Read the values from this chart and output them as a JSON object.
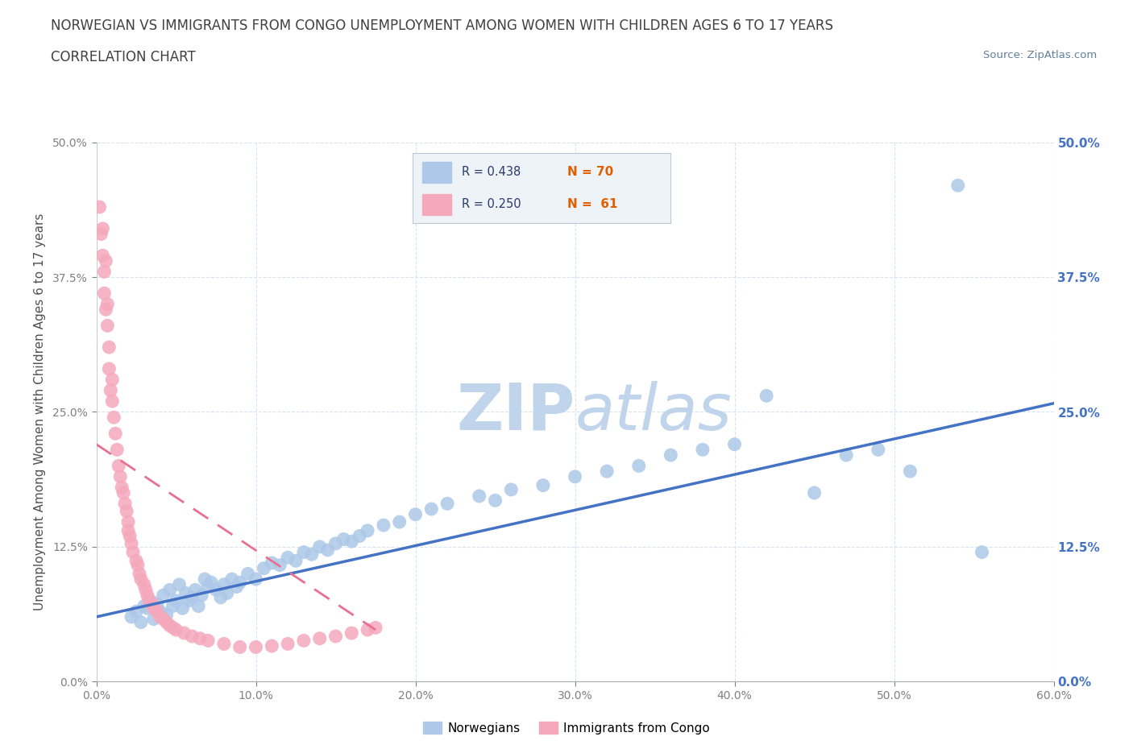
{
  "title_line1": "NORWEGIAN VS IMMIGRANTS FROM CONGO UNEMPLOYMENT AMONG WOMEN WITH CHILDREN AGES 6 TO 17 YEARS",
  "title_line2": "CORRELATION CHART",
  "source_text": "Source: ZipAtlas.com",
  "ylabel": "Unemployment Among Women with Children Ages 6 to 17 years",
  "xlim": [
    0,
    0.6
  ],
  "ylim": [
    0,
    0.5
  ],
  "xticks": [
    0.0,
    0.1,
    0.2,
    0.3,
    0.4,
    0.5,
    0.6
  ],
  "yticks": [
    0.0,
    0.125,
    0.25,
    0.375,
    0.5
  ],
  "xticklabels": [
    "0.0%",
    "10.0%",
    "20.0%",
    "30.0%",
    "40.0%",
    "50.0%",
    "60.0%"
  ],
  "yticklabels": [
    "0.0%",
    "12.5%",
    "25.0%",
    "37.5%",
    "50.0%"
  ],
  "norwegian_R": 0.438,
  "norwegian_N": 70,
  "congo_R": 0.25,
  "congo_N": 61,
  "norwegian_color": "#adc8e8",
  "congo_color": "#f5a8bc",
  "norwegian_line_color": "#4472c4",
  "congo_line_color": "#e87090",
  "watermark_color": "#d0dff0",
  "title_color": "#404040",
  "axis_label_color": "#505050",
  "tick_color": "#808080",
  "right_tick_color": "#4472c4",
  "grid_color": "#d8e4f0",
  "background_color": "#ffffff",
  "norwegian_x": [
    0.022,
    0.025,
    0.028,
    0.03,
    0.032,
    0.034,
    0.036,
    0.038,
    0.04,
    0.042,
    0.044,
    0.046,
    0.048,
    0.05,
    0.052,
    0.054,
    0.056,
    0.058,
    0.06,
    0.062,
    0.064,
    0.066,
    0.068,
    0.07,
    0.072,
    0.075,
    0.078,
    0.08,
    0.082,
    0.085,
    0.088,
    0.09,
    0.095,
    0.1,
    0.105,
    0.11,
    0.115,
    0.12,
    0.125,
    0.13,
    0.135,
    0.14,
    0.145,
    0.15,
    0.155,
    0.16,
    0.165,
    0.17,
    0.18,
    0.19,
    0.2,
    0.21,
    0.22,
    0.24,
    0.25,
    0.26,
    0.28,
    0.3,
    0.32,
    0.34,
    0.36,
    0.38,
    0.4,
    0.42,
    0.45,
    0.47,
    0.49,
    0.51,
    0.54,
    0.555
  ],
  "norwegian_y": [
    0.06,
    0.065,
    0.055,
    0.07,
    0.068,
    0.075,
    0.058,
    0.072,
    0.065,
    0.08,
    0.062,
    0.085,
    0.07,
    0.075,
    0.09,
    0.068,
    0.082,
    0.075,
    0.078,
    0.085,
    0.07,
    0.08,
    0.095,
    0.088,
    0.092,
    0.085,
    0.078,
    0.09,
    0.082,
    0.095,
    0.088,
    0.092,
    0.1,
    0.095,
    0.105,
    0.11,
    0.108,
    0.115,
    0.112,
    0.12,
    0.118,
    0.125,
    0.122,
    0.128,
    0.132,
    0.13,
    0.135,
    0.14,
    0.145,
    0.148,
    0.155,
    0.16,
    0.165,
    0.172,
    0.168,
    0.178,
    0.182,
    0.19,
    0.195,
    0.2,
    0.21,
    0.215,
    0.22,
    0.265,
    0.175,
    0.21,
    0.215,
    0.195,
    0.46,
    0.12
  ],
  "congo_x": [
    0.002,
    0.003,
    0.004,
    0.004,
    0.005,
    0.005,
    0.006,
    0.006,
    0.007,
    0.007,
    0.008,
    0.008,
    0.009,
    0.01,
    0.01,
    0.011,
    0.012,
    0.013,
    0.014,
    0.015,
    0.016,
    0.017,
    0.018,
    0.019,
    0.02,
    0.02,
    0.021,
    0.022,
    0.023,
    0.025,
    0.026,
    0.027,
    0.028,
    0.03,
    0.031,
    0.032,
    0.033,
    0.035,
    0.036,
    0.038,
    0.04,
    0.042,
    0.044,
    0.046,
    0.048,
    0.05,
    0.055,
    0.06,
    0.065,
    0.07,
    0.08,
    0.09,
    0.1,
    0.11,
    0.12,
    0.13,
    0.14,
    0.15,
    0.16,
    0.17,
    0.175
  ],
  "congo_y": [
    0.44,
    0.415,
    0.42,
    0.395,
    0.38,
    0.36,
    0.39,
    0.345,
    0.35,
    0.33,
    0.29,
    0.31,
    0.27,
    0.28,
    0.26,
    0.245,
    0.23,
    0.215,
    0.2,
    0.19,
    0.18,
    0.175,
    0.165,
    0.158,
    0.148,
    0.14,
    0.135,
    0.128,
    0.12,
    0.112,
    0.108,
    0.1,
    0.095,
    0.09,
    0.085,
    0.08,
    0.075,
    0.072,
    0.068,
    0.065,
    0.06,
    0.058,
    0.055,
    0.052,
    0.05,
    0.048,
    0.045,
    0.042,
    0.04,
    0.038,
    0.035,
    0.032,
    0.032,
    0.033,
    0.035,
    0.038,
    0.04,
    0.042,
    0.045,
    0.048,
    0.05
  ],
  "nor_line_x": [
    0.0,
    0.6
  ],
  "nor_line_y": [
    0.06,
    0.258
  ],
  "congo_line_x": [
    0.0,
    0.175
  ],
  "congo_line_y": [
    0.22,
    0.048
  ]
}
